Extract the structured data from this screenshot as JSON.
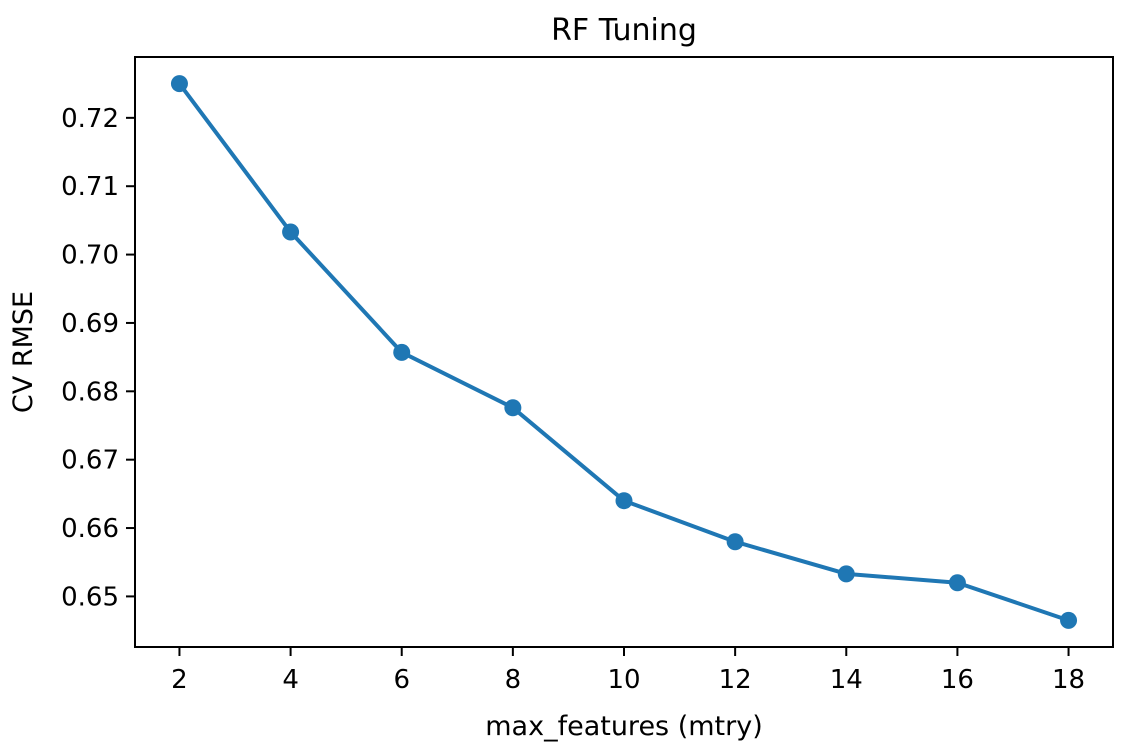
{
  "chart_data": {
    "type": "line",
    "title": "RF Tuning",
    "xlabel": "max_features (mtry)",
    "ylabel": "CV RMSE",
    "x": [
      2,
      4,
      6,
      8,
      10,
      12,
      14,
      16,
      18
    ],
    "series": [
      {
        "name": "CV RMSE",
        "values": [
          0.725,
          0.7033,
          0.6857,
          0.6776,
          0.664,
          0.658,
          0.6533,
          0.652,
          0.6465
        ]
      }
    ],
    "xticks": [
      2,
      4,
      6,
      8,
      10,
      12,
      14,
      16,
      18
    ],
    "yticks": [
      0.65,
      0.66,
      0.67,
      0.68,
      0.69,
      0.7,
      0.71,
      0.72
    ],
    "ytick_decimals": 2,
    "xlim": [
      1.2,
      18.8
    ],
    "ylim": [
      0.6426,
      0.7289
    ],
    "grid": false,
    "legend": "none",
    "line_color": "#1f77b4",
    "marker": "circle",
    "marker_color": "#1f77b4",
    "axis_color": "#000000",
    "text_color": "#000000",
    "background_color": "#ffffff"
  }
}
